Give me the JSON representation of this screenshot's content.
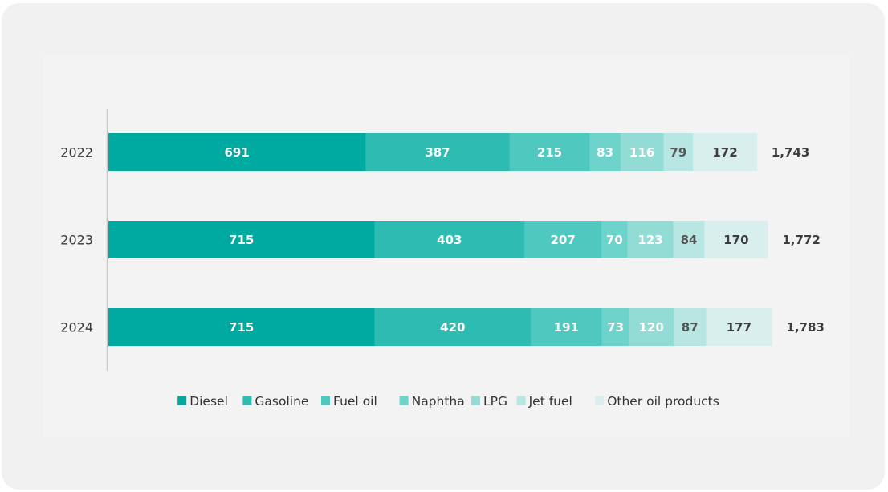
{
  "chart_data": {
    "type": "bar",
    "orientation": "horizontal",
    "stacked": true,
    "categories": [
      "2022",
      "2023",
      "2024"
    ],
    "series": [
      {
        "name": "Diesel",
        "values": [
          691,
          715,
          715
        ],
        "color": "#00aaa0",
        "label_color": "#ffffff"
      },
      {
        "name": "Gasoline",
        "values": [
          387,
          403,
          420
        ],
        "color": "#2dbbb2",
        "label_color": "#ffffff"
      },
      {
        "name": "Fuel oil",
        "values": [
          215,
          207,
          191
        ],
        "color": "#4fc8c0",
        "label_color": "#ffffff"
      },
      {
        "name": "Naphtha",
        "values": [
          83,
          70,
          73
        ],
        "color": "#6dd3cb",
        "label_color": "#ffffff"
      },
      {
        "name": "LPG",
        "values": [
          116,
          123,
          120
        ],
        "color": "#93dcd6",
        "label_color": "#ffffff"
      },
      {
        "name": "Jet fuel",
        "values": [
          79,
          84,
          87
        ],
        "color": "#b8e6e2",
        "label_color": "#555555"
      },
      {
        "name": "Other oil products",
        "values": [
          172,
          170,
          177
        ],
        "color": "#d9efed",
        "label_color": "#3d3d3d"
      }
    ],
    "totals": [
      "1,743",
      "1,772",
      "1,783"
    ],
    "segment_labels": [
      [
        "691",
        "387",
        "215",
        "83",
        "116",
        "79",
        "172"
      ],
      [
        "715",
        "403",
        "207",
        "70",
        "123",
        "84",
        "170"
      ],
      [
        "715",
        "420",
        "191",
        "73",
        "120",
        "87",
        "177"
      ]
    ],
    "title": "",
    "xlabel": "",
    "ylabel": "",
    "grid": false,
    "legend_position": "bottom"
  }
}
